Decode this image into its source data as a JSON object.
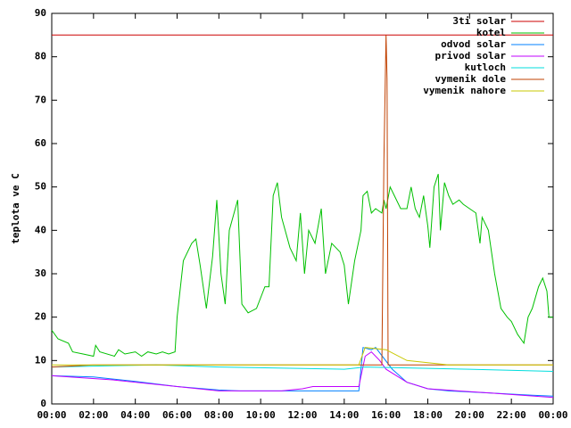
{
  "chart_data": {
    "type": "line",
    "ylabel": "teplota ve C",
    "xlim": [
      0,
      24
    ],
    "xticks": [
      {
        "value": 0,
        "label": "00:00"
      },
      {
        "value": 2,
        "label": "02:00"
      },
      {
        "value": 4,
        "label": "04:00"
      },
      {
        "value": 6,
        "label": "06:00"
      },
      {
        "value": 8,
        "label": "08:00"
      },
      {
        "value": 10,
        "label": "10:00"
      },
      {
        "value": 12,
        "label": "12:00"
      },
      {
        "value": 14,
        "label": "14:00"
      },
      {
        "value": 16,
        "label": "16:00"
      },
      {
        "value": 18,
        "label": "18:00"
      },
      {
        "value": 20,
        "label": "20:00"
      },
      {
        "value": 22,
        "label": "22:00"
      },
      {
        "value": 24,
        "label": "00:00"
      }
    ],
    "ylim": [
      0,
      90
    ],
    "yticks": [
      0,
      10,
      20,
      30,
      40,
      50,
      60,
      70,
      80,
      90
    ],
    "legend": "top-right",
    "series": [
      {
        "name": "3ti solar",
        "color": "#cc0000",
        "x": [
          0,
          24
        ],
        "values": [
          85,
          85
        ]
      },
      {
        "name": "kotel",
        "color": "#00c000",
        "x": [
          0,
          0.3,
          0.8,
          1.0,
          1.5,
          2.0,
          2.1,
          2.3,
          3.0,
          3.2,
          3.5,
          4.0,
          4.3,
          4.6,
          5.0,
          5.3,
          5.6,
          5.9,
          6.0,
          6.3,
          6.7,
          6.9,
          7.1,
          7.4,
          7.7,
          7.9,
          8.1,
          8.3,
          8.5,
          8.9,
          9.1,
          9.4,
          9.8,
          10.2,
          10.4,
          10.6,
          10.8,
          11.0,
          11.4,
          11.7,
          11.9,
          12.1,
          12.3,
          12.6,
          12.9,
          13.1,
          13.4,
          13.8,
          14.0,
          14.2,
          14.5,
          14.8,
          14.9,
          15.1,
          15.3,
          15.5,
          15.8,
          15.9,
          16.0,
          16.2,
          16.4,
          16.7,
          17.0,
          17.2,
          17.4,
          17.6,
          17.8,
          18.0,
          18.1,
          18.3,
          18.5,
          18.6,
          18.8,
          19.0,
          19.2,
          19.5,
          19.7,
          20.0,
          20.3,
          20.5,
          20.6,
          20.9,
          21.2,
          21.5,
          21.8,
          22.0,
          22.3,
          22.6,
          22.8,
          23.0,
          23.3,
          23.5,
          23.7,
          23.8,
          24
        ],
        "values": [
          17,
          15,
          14,
          12,
          11.5,
          11,
          13.5,
          12,
          11,
          12.5,
          11.5,
          12,
          11,
          12,
          11.5,
          12,
          11.5,
          12,
          20,
          33,
          37,
          38,
          32,
          22,
          34,
          47,
          30,
          23,
          40,
          47,
          23,
          21,
          22,
          27,
          27,
          48,
          51,
          43,
          36,
          33,
          44,
          30,
          40,
          37,
          45,
          30,
          37,
          35,
          32,
          23,
          33,
          40,
          48,
          49,
          44,
          45,
          44,
          47,
          45,
          50,
          48,
          45,
          45,
          50,
          45,
          43,
          48,
          41,
          36,
          50,
          53,
          40,
          51,
          48,
          46,
          47,
          46,
          45,
          44,
          37,
          43,
          40,
          30,
          22,
          20,
          19,
          16,
          14,
          20,
          22,
          27,
          29,
          26,
          20,
          20
        ]
      },
      {
        "name": "odvod solar",
        "color": "#0080ff",
        "x": [
          0,
          2,
          4,
          6,
          8,
          9,
          12,
          14.7,
          14.9,
          15.3,
          15.5,
          16.3,
          17,
          18,
          19,
          21,
          23,
          24
        ],
        "values": [
          6.5,
          6.2,
          5.2,
          4,
          3.2,
          3,
          3,
          3,
          13,
          12.5,
          13,
          8,
          5,
          3.5,
          3,
          2.5,
          2,
          1.8
        ]
      },
      {
        "name": "privod solar",
        "color": "#c000ff",
        "x": [
          0,
          3,
          6,
          8,
          11,
          12,
          12.5,
          14.7,
          15,
          15.3,
          15.7,
          16,
          17,
          18,
          21,
          24
        ],
        "values": [
          6.5,
          5.5,
          4,
          3,
          3,
          3.5,
          4,
          4,
          11,
          12,
          10,
          8,
          5,
          3.5,
          2.5,
          1.5
        ]
      },
      {
        "name": "kutloch",
        "color": "#00dddd",
        "x": [
          0,
          5,
          8,
          14,
          15,
          20,
          24
        ],
        "values": [
          8.5,
          9,
          8.5,
          8,
          8.5,
          8,
          7.5
        ]
      },
      {
        "name": "vymenik dole",
        "color": "#c04000",
        "x": [
          0,
          2,
          15.8,
          15.9,
          16.0,
          16.05,
          16.1,
          20,
          24
        ],
        "values": [
          8.5,
          9,
          9,
          56,
          85,
          75,
          9,
          9,
          9
        ]
      },
      {
        "name": "vymenik nahore",
        "color": "#c8c800",
        "x": [
          0,
          14.7,
          15,
          16,
          17,
          19,
          24
        ],
        "values": [
          9,
          9,
          13,
          12.5,
          10,
          9,
          9
        ]
      }
    ]
  }
}
